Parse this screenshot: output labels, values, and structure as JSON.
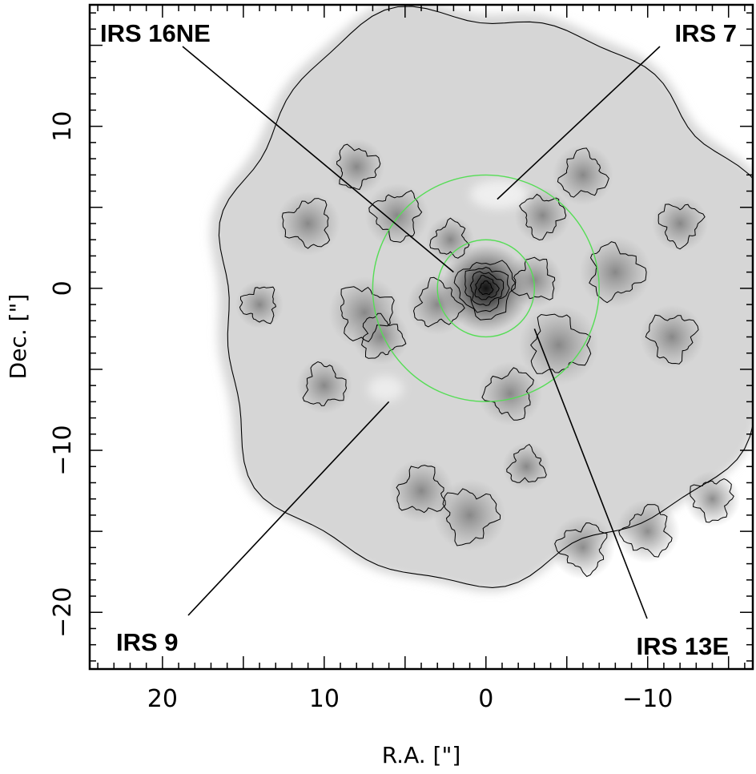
{
  "chart_data": {
    "type": "heatmap",
    "title": "",
    "xlabel": "R.A.  [\"]",
    "ylabel": "Dec.  [\"]",
    "xlim": [
      24.5,
      -16.5
    ],
    "ylim": [
      -23.5,
      17.5
    ],
    "x_ticks": [
      {
        "value": 20,
        "label": "20"
      },
      {
        "value": 10,
        "label": "10"
      },
      {
        "value": 0,
        "label": "0"
      },
      {
        "value": -10,
        "label": "−10"
      }
    ],
    "y_ticks": [
      {
        "value": 10,
        "label": "10"
      },
      {
        "value": 0,
        "label": "0"
      },
      {
        "value": -10,
        "label": "−10"
      },
      {
        "value": -20,
        "label": "−20"
      }
    ],
    "colormap": "grayscale (dark = bright emission)",
    "contours": true,
    "circles": [
      {
        "center": [
          0,
          0
        ],
        "radius": 3.0,
        "color": "#55dd55"
      },
      {
        "center": [
          0,
          0
        ],
        "radius": 7.0,
        "color": "#55dd55"
      }
    ],
    "annotations": [
      {
        "text": "IRS 16NE",
        "point": [
          2.0,
          1.0
        ],
        "label_anchor": "top-left"
      },
      {
        "text": "IRS 7",
        "point": [
          -0.7,
          5.5
        ],
        "label_anchor": "top-right"
      },
      {
        "text": "IRS 9",
        "point": [
          6.0,
          -7.0
        ],
        "label_anchor": "bottom-left"
      },
      {
        "text": "IRS 13E",
        "point": [
          -3.0,
          -2.5
        ],
        "label_anchor": "bottom-right"
      }
    ]
  }
}
